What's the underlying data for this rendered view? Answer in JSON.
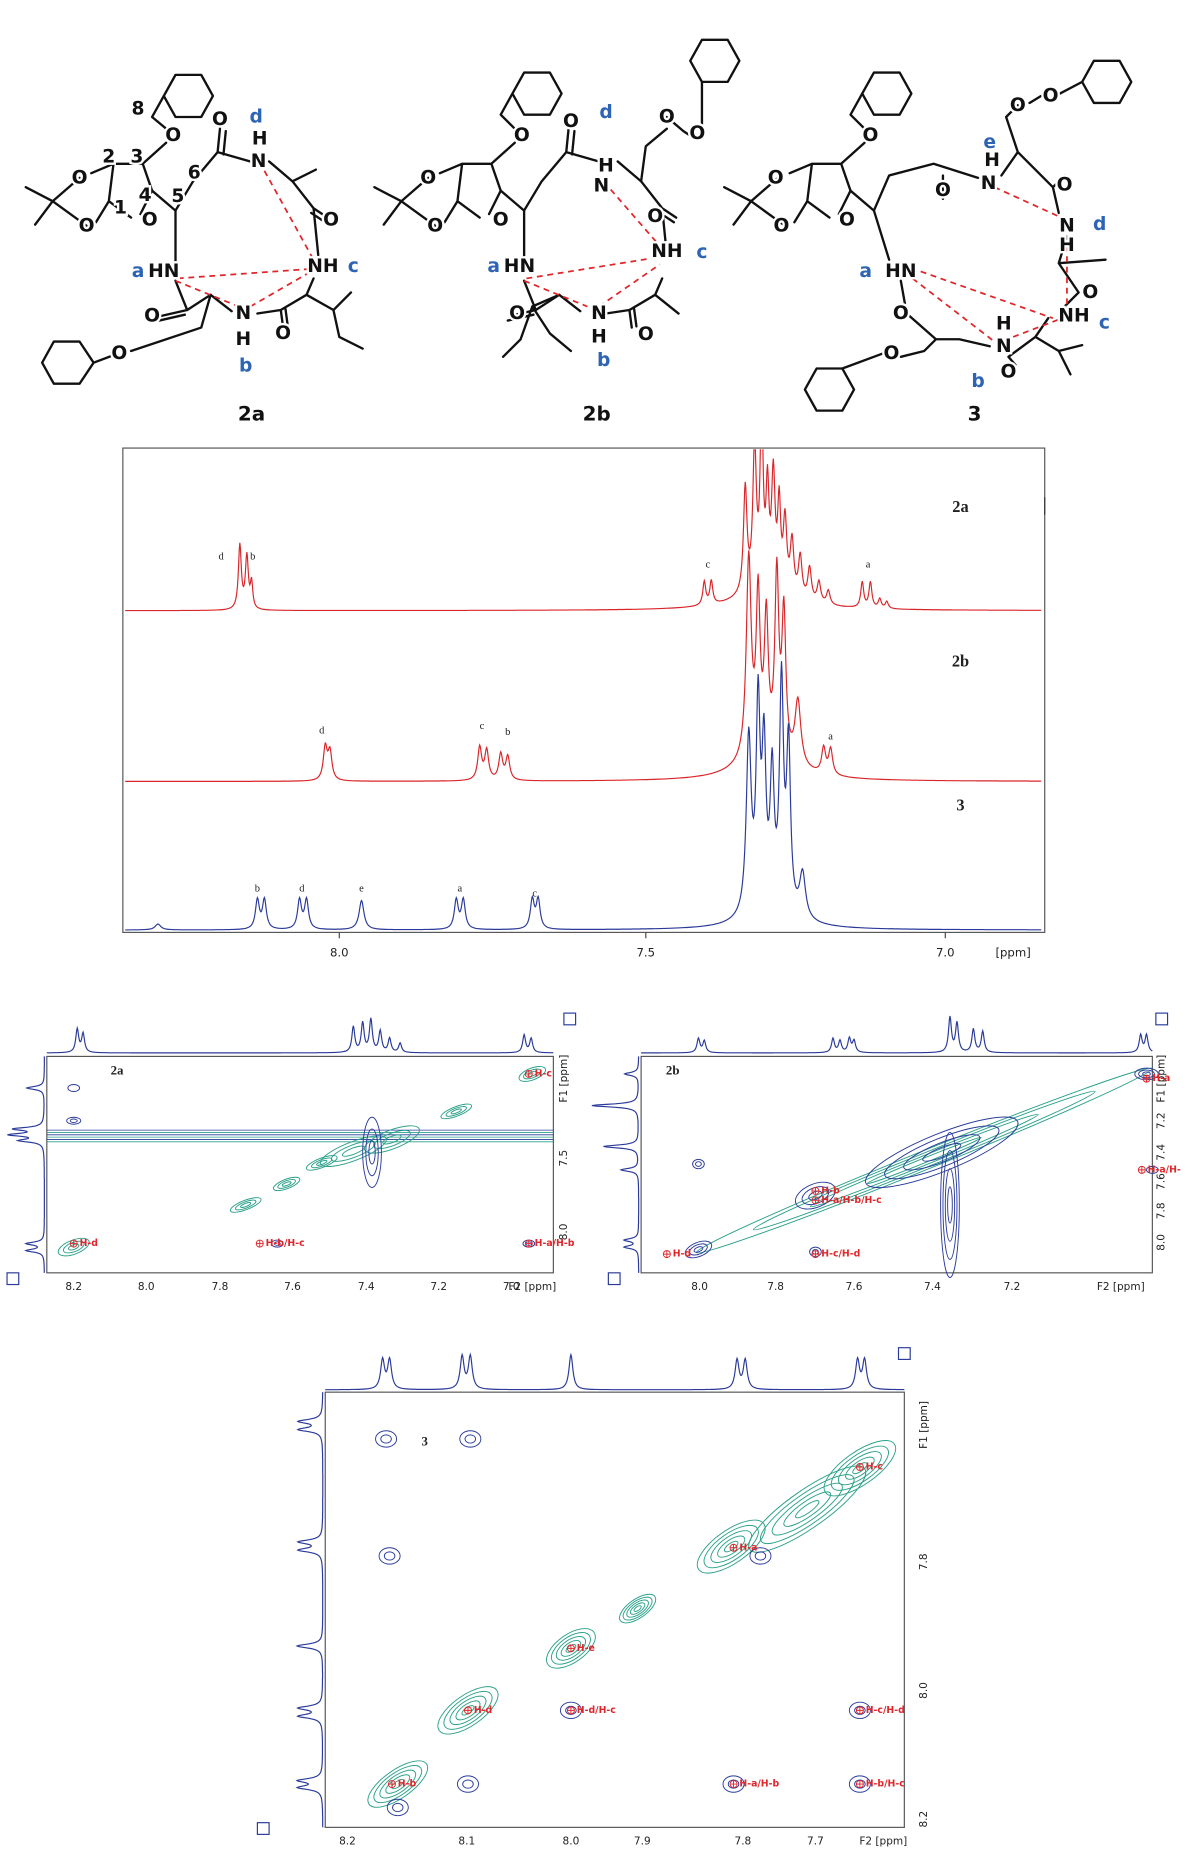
{
  "structures": [
    {
      "compound": "2a",
      "atoms": [
        "O",
        "O",
        "O",
        "O",
        "2",
        "3",
        "4",
        "1",
        "8",
        "5",
        "6",
        "O",
        "d",
        "H",
        "N",
        "O",
        "NH",
        "c",
        "a",
        "HN",
        "O",
        "N",
        "H",
        "O",
        "b",
        "O"
      ]
    },
    {
      "compound": "2b",
      "atoms": [
        "O",
        "O",
        "O",
        "O",
        "O",
        "d",
        "H",
        "N",
        "O",
        "O",
        "O",
        "NH",
        "c",
        "a",
        "HN",
        "O",
        "N",
        "H",
        "b",
        "O"
      ]
    },
    {
      "compound": "3",
      "atoms": [
        "O",
        "O",
        "O",
        "O",
        "e",
        "H",
        "N",
        "O",
        "O",
        "O",
        "O",
        "N",
        "H",
        "d",
        "O",
        "NH",
        "c",
        "a",
        "HN",
        "O",
        "H",
        "N",
        "b",
        "O",
        "O"
      ]
    }
  ],
  "spectrum_1d": {
    "traces": [
      {
        "compound": "2a",
        "peak_labels": [
          "d",
          "b",
          "c",
          "a"
        ]
      },
      {
        "compound": "2b",
        "peak_labels": [
          "d",
          "c",
          "b",
          "a"
        ]
      },
      {
        "compound": "3",
        "peak_labels": [
          "b",
          "d",
          "e",
          "a",
          "c"
        ]
      }
    ],
    "x_ticks": [
      "8.0",
      "7.5",
      "7.0"
    ],
    "x_unit": "[ppm]"
  },
  "spectra_2d": [
    {
      "compound": "2a",
      "x_ticks": [
        "8.2",
        "8.0",
        "7.8",
        "7.6",
        "7.4",
        "7.2",
        "7.0"
      ],
      "y_ticks": [
        "7.5",
        "8.0"
      ],
      "f1": "F1 [ppm]",
      "f2": "F2 [ppm]",
      "cross_peak_labels": [
        "H-d",
        "H-c",
        "H-b/H-c",
        "H-a/H-b"
      ]
    },
    {
      "compound": "2b",
      "x_ticks": [
        "8.0",
        "7.8",
        "7.6",
        "7.4",
        "7.2"
      ],
      "y_ticks": [
        "7.2",
        "7.4",
        "7.6",
        "7.8",
        "8.0"
      ],
      "f1": "F1 [ppm]",
      "f2": "F2 [ppm]",
      "cross_peak_labels": [
        "H-a",
        "H-a/H-",
        "H-b",
        "H-a/H-b/H-c",
        "H-c/H-d",
        "H-d"
      ]
    },
    {
      "compound": "3",
      "x_ticks": [
        "8.2",
        "8.1",
        "8.0",
        "7.9",
        "7.8",
        "7.7"
      ],
      "y_ticks": [
        "7.8",
        "8.0",
        "8.2"
      ],
      "f1": "F1 [ppm]",
      "f2": "F2 [ppm]",
      "cross_peak_labels": [
        "H-c",
        "H-a",
        "H-e",
        "H-d",
        "H-d/H-c",
        "H-c/H-d",
        "H-b",
        "H-a/H-b",
        "H-b/H-c"
      ]
    }
  ]
}
